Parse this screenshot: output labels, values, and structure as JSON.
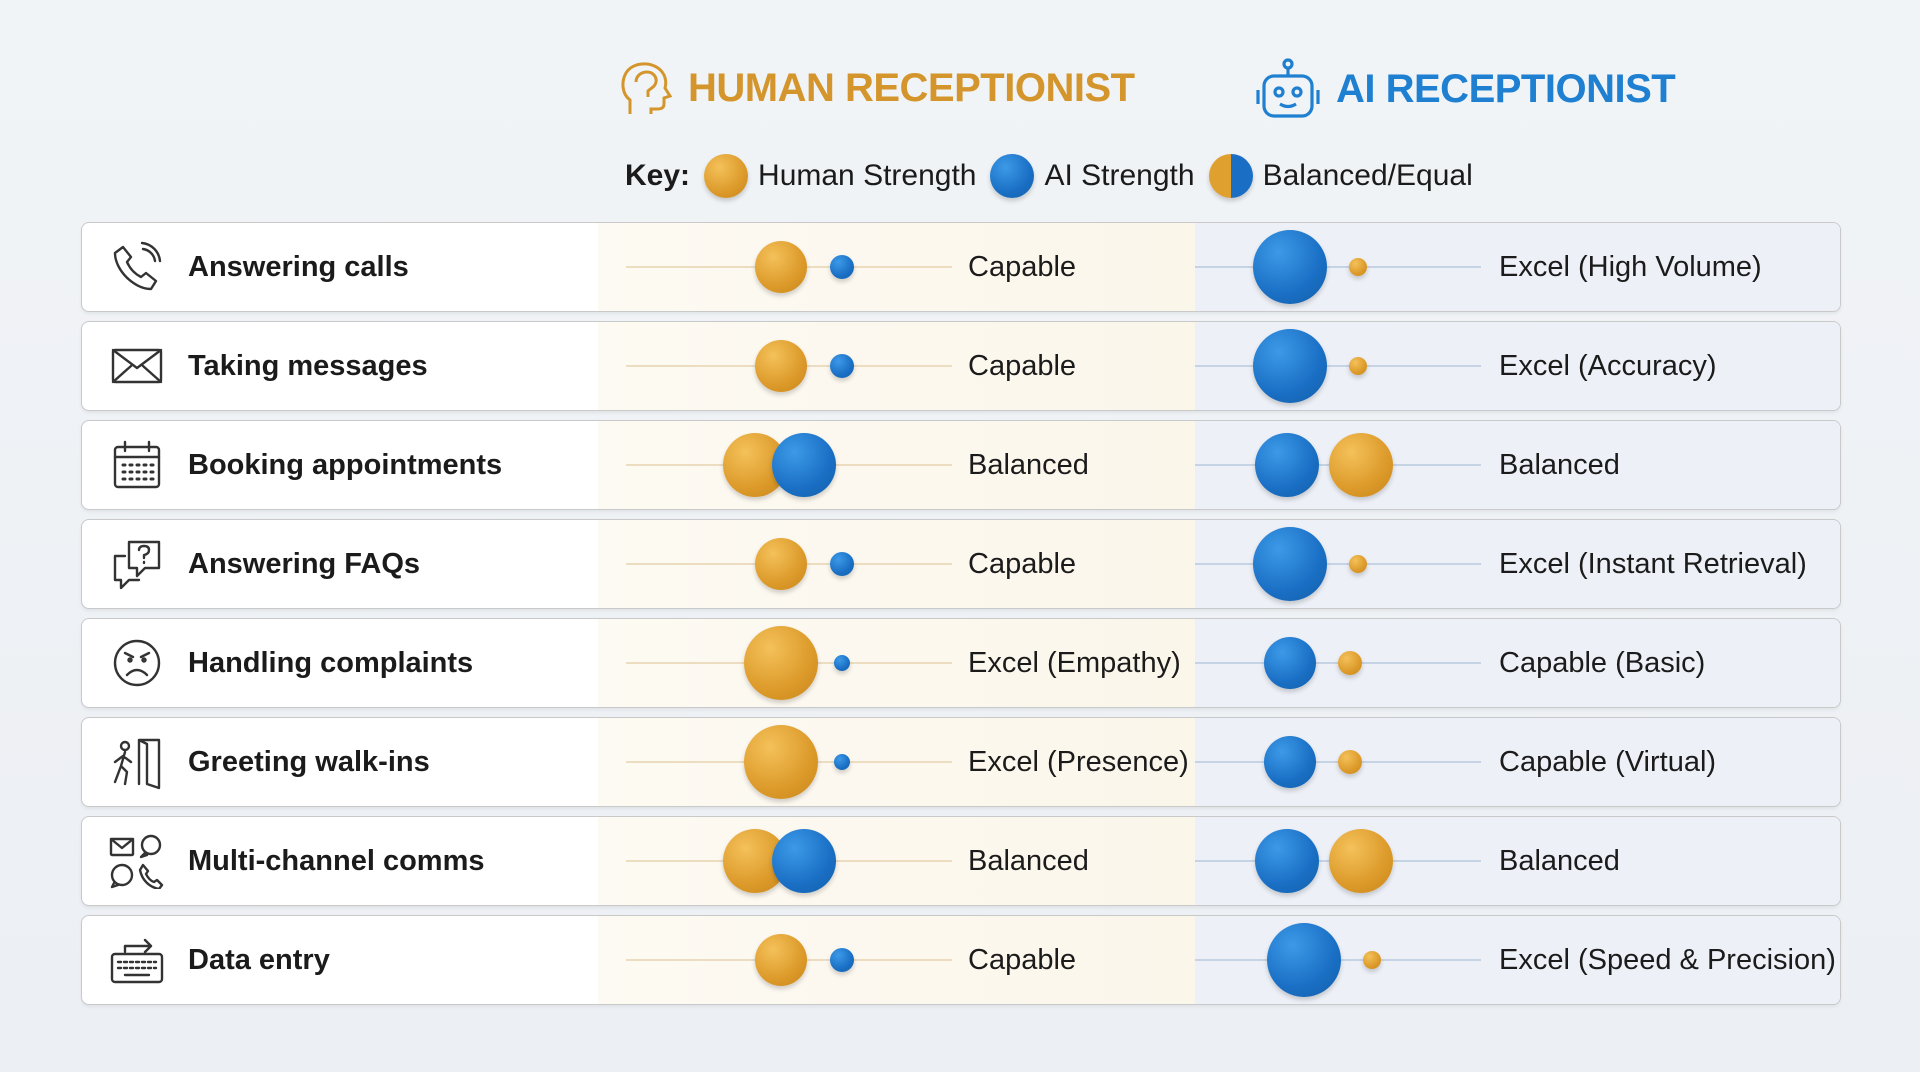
{
  "header": {
    "human_title": "HUMAN RECEPTIONIST",
    "ai_title": "AI RECEPTIONIST"
  },
  "key": {
    "label": "Key:",
    "items": [
      {
        "label": "Human Strength",
        "color": "#dc9a2a"
      },
      {
        "label": "AI Strength",
        "color": "#1a6fc4"
      },
      {
        "label": "Balanced/Equal",
        "color": "split"
      }
    ]
  },
  "colors": {
    "human": "#d4962c",
    "ai": "#1f7fd1"
  },
  "rows": [
    {
      "task": "Answering calls",
      "icon": "phone-icon",
      "human": {
        "level": "capable",
        "text": "Capable"
      },
      "ai": {
        "level": "excel",
        "text": "Excel (High Volume)"
      }
    },
    {
      "task": "Taking messages",
      "icon": "envelope-icon",
      "human": {
        "level": "capable",
        "text": "Capable"
      },
      "ai": {
        "level": "excel",
        "text": "Excel (Accuracy)"
      }
    },
    {
      "task": "Booking appointments",
      "icon": "calendar-icon",
      "human": {
        "level": "balanced",
        "text": "Balanced"
      },
      "ai": {
        "level": "balanced",
        "text": "Balanced"
      }
    },
    {
      "task": "Answering FAQs",
      "icon": "question-chat-icon",
      "human": {
        "level": "capable",
        "text": "Capable"
      },
      "ai": {
        "level": "excel",
        "text": "Excel (Instant Retrieval)"
      }
    },
    {
      "task": "Handling complaints",
      "icon": "angry-face-icon",
      "human": {
        "level": "excel",
        "text": "Excel (Empathy)"
      },
      "ai": {
        "level": "capable",
        "text": "Capable (Basic)"
      }
    },
    {
      "task": "Greeting walk-ins",
      "icon": "person-door-icon",
      "human": {
        "level": "excel",
        "text": "Excel (Presence)"
      },
      "ai": {
        "level": "capable",
        "text": "Capable (Virtual)"
      }
    },
    {
      "task": "Multi-channel comms",
      "icon": "multichannel-icon",
      "human": {
        "level": "balanced",
        "text": "Balanced"
      },
      "ai": {
        "level": "balanced",
        "text": "Balanced"
      }
    },
    {
      "task": "Data entry",
      "icon": "keyboard-icon",
      "human": {
        "level": "capable",
        "text": "Capable"
      },
      "ai": {
        "level": "excel",
        "text": "Excel (Speed & Precision)"
      }
    }
  ]
}
